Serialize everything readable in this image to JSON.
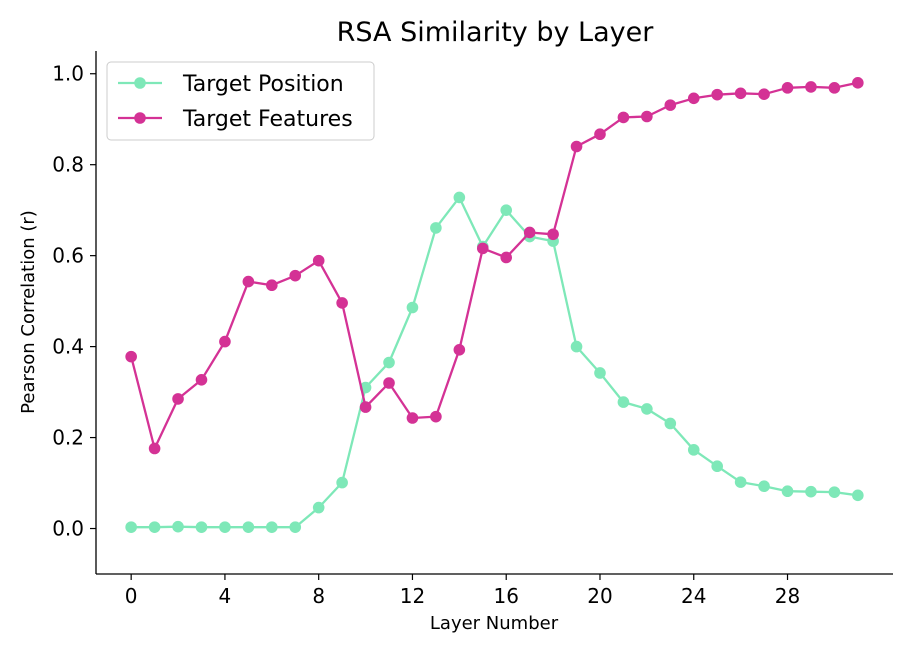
{
  "chart_data": {
    "type": "line",
    "title": "RSA Similarity by Layer",
    "xlabel": "Layer Number",
    "ylabel": "Pearson Correlation (r)",
    "x": [
      0,
      1,
      2,
      3,
      4,
      5,
      6,
      7,
      8,
      9,
      10,
      11,
      12,
      13,
      14,
      15,
      16,
      17,
      18,
      19,
      20,
      21,
      22,
      23,
      24,
      25,
      26,
      27,
      28,
      29,
      30,
      31
    ],
    "xticks": [
      0,
      4,
      8,
      12,
      16,
      20,
      24,
      28
    ],
    "yticks": [
      0.0,
      0.2,
      0.4,
      0.6,
      0.8,
      1.0
    ],
    "ytick_labels": [
      "0.0",
      "0.2",
      "0.4",
      "0.6",
      "0.8",
      "1.0"
    ],
    "xlim": [
      -1.5,
      32.5
    ],
    "ylim": [
      -0.1,
      1.05
    ],
    "grid": false,
    "legend_position": "top-left",
    "series": [
      {
        "name": "Target Position",
        "color": "#7ee8b8",
        "values": [
          0.003,
          0.003,
          0.004,
          0.003,
          0.003,
          0.003,
          0.003,
          0.003,
          0.046,
          0.101,
          0.31,
          0.365,
          0.486,
          0.661,
          0.728,
          0.62,
          0.7,
          0.642,
          0.632,
          0.4,
          0.342,
          0.278,
          0.263,
          0.231,
          0.173,
          0.137,
          0.102,
          0.093,
          0.082,
          0.081,
          0.08,
          0.073
        ]
      },
      {
        "name": "Target Features",
        "color": "#d43295",
        "values": [
          0.378,
          0.176,
          0.285,
          0.327,
          0.411,
          0.543,
          0.535,
          0.556,
          0.589,
          0.496,
          0.267,
          0.32,
          0.243,
          0.246,
          0.393,
          0.616,
          0.596,
          0.651,
          0.647,
          0.84,
          0.867,
          0.904,
          0.906,
          0.931,
          0.946,
          0.954,
          0.957,
          0.955,
          0.969,
          0.971,
          0.969,
          0.98
        ]
      }
    ]
  }
}
